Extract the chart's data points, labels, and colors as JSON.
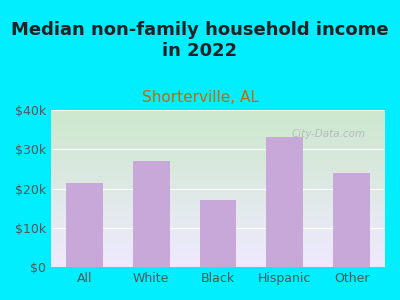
{
  "title": "Median non-family household income\nin 2022",
  "subtitle": "Shorterville, AL",
  "categories": [
    "All",
    "White",
    "Black",
    "Hispanic",
    "Other"
  ],
  "values": [
    21500,
    27000,
    17000,
    33000,
    24000
  ],
  "bar_color": "#c8a8d8",
  "background_outer": "#00eeff",
  "background_plot_top": "#d8f0d0",
  "background_plot_bottom": "#f5f0ff",
  "title_color": "#222222",
  "subtitle_color": "#cc6600",
  "axis_label_color": "#444444",
  "tick_label_color": "#555555",
  "ylim": [
    0,
    40000
  ],
  "yticks": [
    0,
    10000,
    20000,
    30000,
    40000
  ],
  "ytick_labels": [
    "$0",
    "$10k",
    "$20k",
    "$30k",
    "$40k"
  ],
  "watermark": "City-Data.com",
  "title_fontsize": 13,
  "subtitle_fontsize": 11,
  "tick_fontsize": 9
}
